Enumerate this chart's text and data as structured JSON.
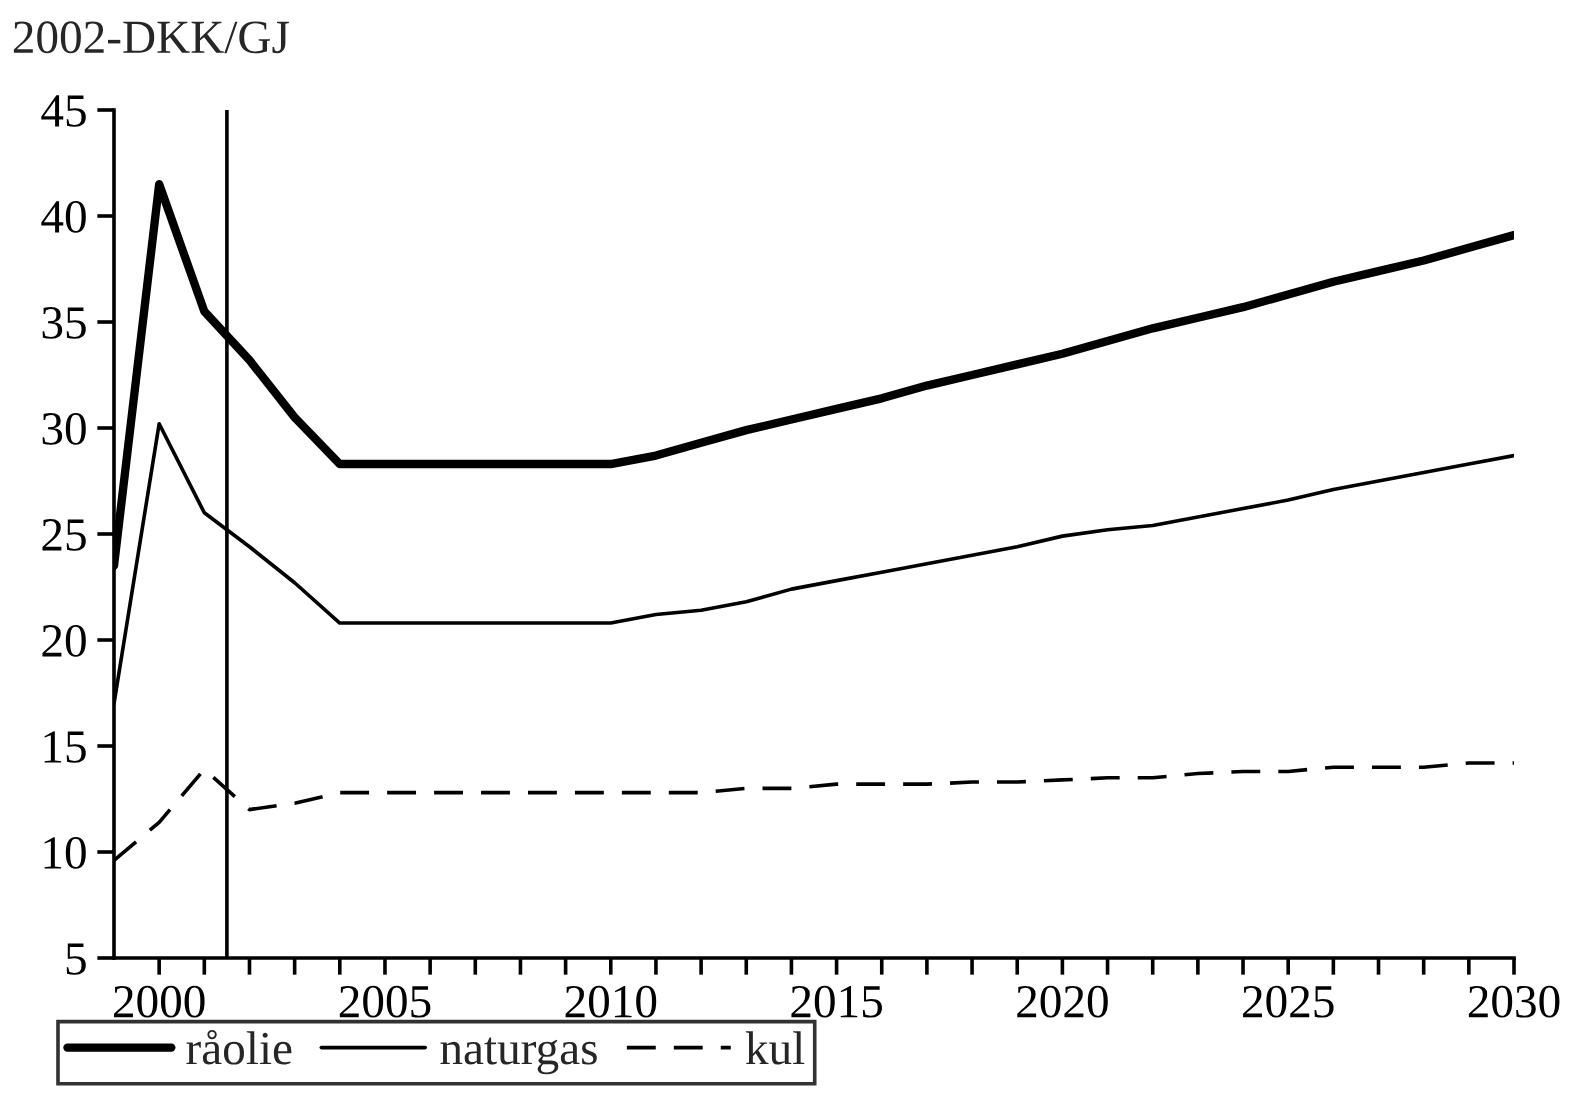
{
  "chart_data": {
    "type": "line",
    "ylabel": "2002-DKK/GJ",
    "x": [
      1999,
      2000,
      2001,
      2002,
      2003,
      2004,
      2005,
      2006,
      2007,
      2008,
      2009,
      2010,
      2011,
      2012,
      2013,
      2014,
      2015,
      2016,
      2017,
      2018,
      2019,
      2020,
      2021,
      2022,
      2023,
      2024,
      2025,
      2026,
      2027,
      2028,
      2029,
      2030
    ],
    "series": [
      {
        "name": "råolie",
        "color": "#000000",
        "line_style": "solid",
        "values": [
          23.5,
          41.5,
          35.5,
          33.2,
          30.5,
          28.3,
          28.3,
          28.3,
          28.3,
          28.3,
          28.3,
          28.3,
          28.7,
          29.3,
          29.9,
          30.4,
          30.9,
          31.4,
          32.0,
          32.5,
          33.0,
          33.5,
          34.1,
          34.7,
          35.2,
          35.7,
          36.3,
          36.9,
          37.4,
          37.9,
          38.5,
          39.1
        ]
      },
      {
        "name": "naturgas",
        "color": "#000000",
        "line_style": "solid",
        "values": [
          17.0,
          30.2,
          26.0,
          24.4,
          22.7,
          20.8,
          20.8,
          20.8,
          20.8,
          20.8,
          20.8,
          20.8,
          21.2,
          21.4,
          21.8,
          22.4,
          22.8,
          23.2,
          23.6,
          24.0,
          24.4,
          24.9,
          25.2,
          25.4,
          25.8,
          26.2,
          26.6,
          27.1,
          27.5,
          27.9,
          28.3,
          28.7
        ]
      },
      {
        "name": "kul",
        "color": "#000000",
        "line_style": "dashed",
        "values": [
          9.6,
          11.4,
          13.9,
          12.0,
          12.3,
          12.8,
          12.8,
          12.8,
          12.8,
          12.8,
          12.8,
          12.8,
          12.8,
          12.8,
          13.0,
          13.0,
          13.2,
          13.2,
          13.2,
          13.3,
          13.3,
          13.4,
          13.5,
          13.5,
          13.7,
          13.8,
          13.8,
          14.0,
          14.0,
          14.0,
          14.2,
          14.2
        ]
      }
    ],
    "xlim": [
      1999,
      2030
    ],
    "ylim": [
      5,
      45
    ],
    "xticks": [
      2000,
      {
        "value": 2001,
        "label": null
      },
      {
        "value": 2002,
        "label": null
      },
      {
        "value": 2003,
        "label": null
      },
      {
        "value": 2004,
        "label": null
      },
      2005,
      {
        "value": 2006,
        "label": null
      },
      {
        "value": 2007,
        "label": null
      },
      {
        "value": 2008,
        "label": null
      },
      {
        "value": 2009,
        "label": null
      },
      2010,
      {
        "value": 2011,
        "label": null
      },
      {
        "value": 2012,
        "label": null
      },
      {
        "value": 2013,
        "label": null
      },
      {
        "value": 2014,
        "label": null
      },
      2015,
      {
        "value": 2016,
        "label": null
      },
      {
        "value": 2017,
        "label": null
      },
      {
        "value": 2018,
        "label": null
      },
      {
        "value": 2019,
        "label": null
      },
      2020,
      {
        "value": 2021,
        "label": null
      },
      {
        "value": 2022,
        "label": null
      },
      {
        "value": 2023,
        "label": null
      },
      {
        "value": 2024,
        "label": null
      },
      2025,
      {
        "value": 2026,
        "label": null
      },
      {
        "value": 2027,
        "label": null
      },
      {
        "value": 2028,
        "label": null
      },
      {
        "value": 2029,
        "label": null
      },
      2030
    ],
    "yticks": [
      5,
      10,
      15,
      20,
      25,
      30,
      35,
      40,
      45
    ],
    "ref_lines": [
      {
        "axis": "x",
        "value": 2001.5,
        "color": "#000000",
        "line_style": "solid"
      }
    ],
    "grid": false,
    "legend": "bottom",
    "marker": "none"
  }
}
